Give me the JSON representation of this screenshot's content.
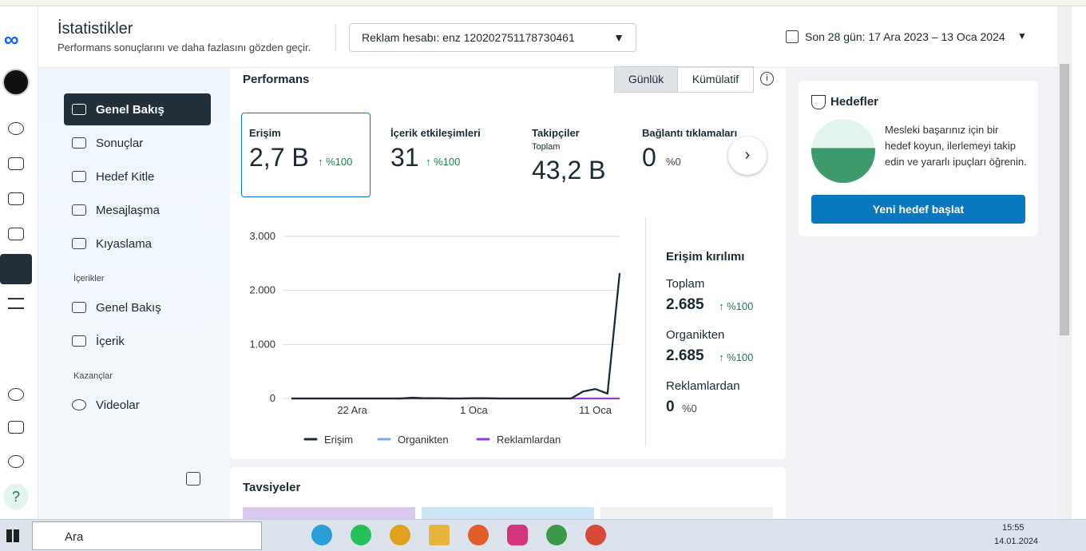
{
  "header": {
    "title": "İstatistikler",
    "subtitle": "Performans sonuçlarını ve daha fazlasını gözden geçir.",
    "account": "Reklam hesabı: enz 120202751178730461",
    "date_range": "Son 28 gün: 17 Ara 2023 – 13 Oca 2024"
  },
  "nav": {
    "items": [
      "Genel Bakış",
      "Sonuçlar",
      "Hedef Kitle",
      "Mesajlaşma",
      "Kıyaslama"
    ],
    "section1": "İçerikler",
    "content_items": [
      "Genel Bakış",
      "İçerik"
    ],
    "section2": "Kazançlar",
    "earn_items": [
      "Videolar"
    ]
  },
  "performance": {
    "title": "Performans",
    "toggle": [
      "Günlük",
      "Kümülatif"
    ],
    "metrics": [
      {
        "label": "Erişim",
        "value": "2,7 B",
        "change": "%100"
      },
      {
        "label": "İçerik etkileşimleri",
        "value": "31",
        "change": "%100"
      },
      {
        "label": "Takipçiler",
        "sublabel": "Toplam",
        "value": "43,2 B"
      },
      {
        "label": "Bağlantı tıklamaları",
        "value": "0",
        "change": "%0"
      }
    ],
    "chart": {
      "type": "line",
      "categories": [
        null,
        null,
        null,
        null,
        null,
        "22 Ara",
        null,
        null,
        null,
        null,
        null,
        null,
        null,
        null,
        null,
        "1 Oca",
        null,
        null,
        null,
        null,
        null,
        null,
        null,
        null,
        null,
        "11 Oca",
        null,
        null
      ],
      "series": [
        {
          "name": "Erişim",
          "color": "#1c2b33",
          "values": [
            0,
            0,
            0,
            0,
            0,
            0,
            0,
            0,
            0,
            0,
            15,
            5,
            5,
            0,
            0,
            5,
            5,
            0,
            0,
            0,
            0,
            0,
            0,
            0,
            130,
            175,
            90,
            2320
          ]
        },
        {
          "name": "Organikten",
          "color": "#7aa7f0",
          "values": [
            0,
            0,
            0,
            0,
            0,
            0,
            0,
            0,
            0,
            0,
            15,
            5,
            5,
            0,
            0,
            5,
            5,
            0,
            0,
            0,
            0,
            0,
            0,
            0,
            130,
            175,
            90,
            2320
          ]
        },
        {
          "name": "Reklamlardan",
          "color": "#9b3ad8",
          "values": [
            0,
            0,
            0,
            0,
            0,
            0,
            0,
            0,
            0,
            0,
            0,
            0,
            0,
            0,
            0,
            0,
            0,
            0,
            0,
            0,
            0,
            0,
            0,
            0,
            0,
            0,
            0,
            0
          ]
        }
      ],
      "ylim": [
        0,
        3000
      ],
      "yticks": [
        0,
        {
          "value": 1000,
          "label": "1.000"
        },
        {
          "value": 2000,
          "label": "2.000"
        },
        {
          "value": 3000,
          "label": "3.000"
        }
      ],
      "grid": true
    },
    "breakdown": {
      "title": "Erişim kırılımı",
      "rows": [
        {
          "label": "Toplam",
          "value": "2.685",
          "change": "%100"
        },
        {
          "label": "Organikten",
          "value": "2.685",
          "change": "%100"
        },
        {
          "label": "Reklamlardan",
          "value": "0",
          "change": "%0"
        }
      ]
    }
  },
  "goals": {
    "title": "Hedefler",
    "text": "Mesleki başarınız için bir hedef koyun, ilerlemeyi takip edin ve yararlı ipuçları öğrenin.",
    "button": "Yeni hedef başlat"
  },
  "recommendations": {
    "title": "Tavsiyeler"
  },
  "taskbar": {
    "search": "Ara",
    "time": "15:55",
    "date": "14.01.2024"
  }
}
